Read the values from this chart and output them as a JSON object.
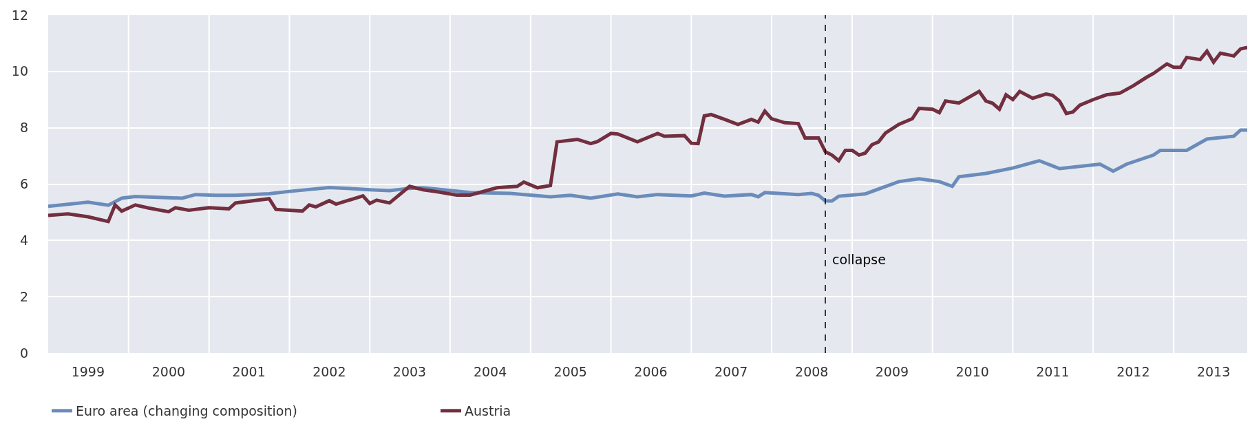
{
  "chart_data": {
    "type": "line",
    "xlim": [
      "1999-01",
      "2013-12"
    ],
    "ylim": [
      0,
      12
    ],
    "yticks": [
      0,
      2,
      4,
      6,
      8,
      10,
      12
    ],
    "xticks": [
      {
        "value": "2000-01",
        "label": null
      },
      {
        "value": "2001-01",
        "label": null
      },
      {
        "value": "2002-01",
        "label": null
      },
      {
        "value": "2003-01",
        "label": null
      },
      {
        "value": "2004-01",
        "label": null
      },
      {
        "value": "2005-01",
        "label": null
      },
      {
        "value": "2006-01",
        "label": null
      },
      {
        "value": "2007-01",
        "label": null
      },
      {
        "value": "2008-01",
        "label": null
      },
      {
        "value": "2009-01",
        "label": null
      },
      {
        "value": "2010-01",
        "label": null
      },
      {
        "value": "2011-01",
        "label": null
      },
      {
        "value": "2012-01",
        "label": null
      },
      {
        "value": "2013-01",
        "label": null
      },
      {
        "value": "1999-07",
        "label": "1999"
      },
      {
        "value": "2000-07",
        "label": "2000"
      },
      {
        "value": "2001-07",
        "label": "2001"
      },
      {
        "value": "2002-07",
        "label": "2002"
      },
      {
        "value": "2003-07",
        "label": "2003"
      },
      {
        "value": "2004-07",
        "label": "2004"
      },
      {
        "value": "2005-07",
        "label": "2005"
      },
      {
        "value": "2006-07",
        "label": "2006"
      },
      {
        "value": "2007-07",
        "label": "2007"
      },
      {
        "value": "2008-07",
        "label": "2008"
      },
      {
        "value": "2009-07",
        "label": "2009"
      },
      {
        "value": "2010-07",
        "label": "2010"
      },
      {
        "value": "2011-07",
        "label": "2011"
      },
      {
        "value": "2012-07",
        "label": "2012"
      },
      {
        "value": "2013-07",
        "label": "2013"
      }
    ],
    "grid": true,
    "legend": "bottom left",
    "marker": "none",
    "line_style": "solid",
    "series": [
      {
        "name": "Euro area (changing composition)",
        "color": "#6b8cba",
        "x": [
          "1999-01",
          "1999-07",
          "1999-10",
          "1999-12",
          "2000-02",
          "2000-09",
          "2000-11",
          "2001-02",
          "2001-05",
          "2001-10",
          "2002-01",
          "2002-07",
          "2002-11",
          "2003-01",
          "2003-04",
          "2003-07",
          "2003-09",
          "2003-12",
          "2004-04",
          "2004-10",
          "2005-04",
          "2005-07",
          "2005-10",
          "2006-02",
          "2006-05",
          "2006-08",
          "2007-01",
          "2007-03",
          "2007-06",
          "2007-10",
          "2007-11",
          "2007-12",
          "2008-05",
          "2008-07",
          "2008-08",
          "2008-09",
          "2008-10",
          "2008-11",
          "2009-03",
          "2009-08",
          "2009-11",
          "2010-02",
          "2010-04",
          "2010-05",
          "2010-09",
          "2011-01",
          "2011-05",
          "2011-08",
          "2012-02",
          "2012-04",
          "2012-06",
          "2012-10",
          "2012-11",
          "2013-03",
          "2013-06",
          "2013-10",
          "2013-11",
          "2013-12"
        ],
        "values": [
          5.21,
          5.36,
          5.25,
          5.5,
          5.56,
          5.5,
          5.63,
          5.6,
          5.6,
          5.66,
          5.74,
          5.88,
          5.83,
          5.8,
          5.77,
          5.85,
          5.87,
          5.8,
          5.7,
          5.67,
          5.55,
          5.6,
          5.5,
          5.65,
          5.55,
          5.63,
          5.58,
          5.68,
          5.57,
          5.63,
          5.55,
          5.7,
          5.63,
          5.67,
          5.6,
          5.4,
          5.4,
          5.57,
          5.65,
          6.09,
          6.19,
          6.09,
          5.92,
          6.26,
          6.38,
          6.57,
          6.83,
          6.55,
          6.71,
          6.46,
          6.71,
          7.03,
          7.2,
          7.2,
          7.6,
          7.7,
          7.92,
          7.92
        ]
      },
      {
        "name": "Austria",
        "color": "#722f3f",
        "x": [
          "1999-01",
          "1999-04",
          "1999-07",
          "1999-10",
          "1999-11",
          "1999-12",
          "2000-02",
          "2000-04",
          "2000-07",
          "2000-08",
          "2000-10",
          "2001-01",
          "2001-04",
          "2001-05",
          "2001-10",
          "2001-11",
          "2002-03",
          "2002-04",
          "2002-05",
          "2002-07",
          "2002-08",
          "2002-12",
          "2003-01",
          "2003-02",
          "2003-04",
          "2003-07",
          "2003-09",
          "2003-11",
          "2004-02",
          "2004-04",
          "2004-08",
          "2004-11",
          "2004-12",
          "2005-02",
          "2005-04",
          "2005-05",
          "2005-08",
          "2005-10",
          "2005-11",
          "2006-01",
          "2006-02",
          "2006-05",
          "2006-08",
          "2006-09",
          "2006-12",
          "2007-01",
          "2007-02",
          "2007-03",
          "2007-04",
          "2007-06",
          "2007-08",
          "2007-10",
          "2007-11",
          "2007-12",
          "2008-01",
          "2008-03",
          "2008-05",
          "2008-06",
          "2008-08",
          "2008-09",
          "2008-10",
          "2008-11",
          "2008-12",
          "2009-01",
          "2009-02",
          "2009-03",
          "2009-04",
          "2009-05",
          "2009-06",
          "2009-08",
          "2009-10",
          "2009-11",
          "2010-01",
          "2010-02",
          "2010-03",
          "2010-05",
          "2010-08",
          "2010-09",
          "2010-10",
          "2010-11",
          "2010-12",
          "2011-01",
          "2011-02",
          "2011-04",
          "2011-06",
          "2011-07",
          "2011-08",
          "2011-09",
          "2011-10",
          "2011-11",
          "2012-01",
          "2012-03",
          "2012-05",
          "2012-07",
          "2012-09",
          "2012-10",
          "2012-12",
          "2013-01",
          "2013-02",
          "2013-03",
          "2013-05",
          "2013-06",
          "2013-07",
          "2013-08",
          "2013-10",
          "2013-11",
          "2013-12"
        ],
        "values": [
          4.89,
          4.94,
          4.84,
          4.67,
          5.26,
          5.04,
          5.26,
          5.15,
          5.02,
          5.16,
          5.07,
          5.16,
          5.12,
          5.33,
          5.48,
          5.1,
          5.04,
          5.26,
          5.19,
          5.41,
          5.29,
          5.58,
          5.31,
          5.43,
          5.33,
          5.92,
          5.8,
          5.73,
          5.61,
          5.61,
          5.87,
          5.92,
          6.07,
          5.87,
          5.95,
          7.5,
          7.59,
          7.44,
          7.51,
          7.8,
          7.78,
          7.5,
          7.8,
          7.7,
          7.72,
          7.45,
          7.44,
          8.42,
          8.47,
          8.3,
          8.12,
          8.3,
          8.2,
          8.59,
          8.32,
          8.18,
          8.15,
          7.64,
          7.64,
          7.15,
          7.03,
          6.83,
          7.2,
          7.2,
          7.03,
          7.1,
          7.4,
          7.5,
          7.81,
          8.12,
          8.32,
          8.69,
          8.66,
          8.54,
          8.95,
          8.88,
          9.29,
          8.95,
          8.87,
          8.66,
          9.17,
          9.0,
          9.29,
          9.05,
          9.2,
          9.15,
          8.95,
          8.51,
          8.56,
          8.8,
          9.0,
          9.17,
          9.23,
          9.49,
          9.8,
          9.93,
          10.27,
          10.15,
          10.15,
          10.5,
          10.42,
          10.72,
          10.33,
          10.65,
          10.55,
          10.8,
          10.85
        ]
      }
    ],
    "ref_lines": [
      {
        "axis": "x",
        "value": "2008-09",
        "label": "collapse",
        "color": "#000000",
        "line_style": "dashed"
      }
    ]
  }
}
